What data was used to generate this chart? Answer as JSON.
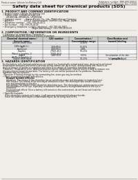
{
  "bg_color": "#f0ede8",
  "header_top_left": "Product name: Lithium Ion Battery Cell",
  "header_top_right": "Substance number: SBN-689-00010\nEstablishment / Revision: Dec.7.2010",
  "main_title": "Safety data sheet for chemical products (SDS)",
  "section1_title": "1. PRODUCT AND COMPANY IDENTIFICATION",
  "section1_lines": [
    "  • Product name: Lithium Ion Battery Cell",
    "  • Product code: Cylindrical-type cell",
    "       UR18650A, UR18650L, UR18650A",
    "  • Company name:      Sanyo Electric Co., Ltd., Mobile Energy Company",
    "  • Address:               2023-1  Kamimunakan, Sumoto-City, Hyogo, Japan",
    "  • Telephone number:   +81-799-26-4111",
    "  • Fax number:   +81-799-26-4129",
    "  • Emergency telephone number (daytime): +81-799-26-3962",
    "                                            (Night and holiday): +81-799-26-4129"
  ],
  "section2_title": "2. COMPOSITION / INFORMATION ON INGREDIENTS",
  "section2_intro": "  • Substance or preparation: Preparation",
  "section2_sub": "  Information about the chemical nature of product:",
  "table_headers": [
    "Chemical chemical name /\nGeneric name",
    "CAS number",
    "Concentration /\nConcentration range",
    "Classification and\nhazard labeling"
  ],
  "table_rows": [
    [
      "Lithium cobalt oxide\n(LiMn-Co-Ni-O₂)",
      "-",
      "30-60%",
      "-"
    ],
    [
      "Iron",
      "7439-89-6",
      "15-25%",
      "-"
    ],
    [
      "Aluminum",
      "7429-90-5",
      "2-8%",
      "-"
    ],
    [
      "Graphite\n(Metal in graphite-1)\n(All-Mo-in-graphite-1)",
      "77643-40-5\n77343-44-0",
      "10-20%",
      "-"
    ],
    [
      "Copper",
      "7440-50-8",
      "5-15%",
      "Sensitization of the skin\ngroup No.2"
    ],
    [
      "Organic electrolyte",
      "-",
      "10-20%",
      "Inflammable liquid"
    ]
  ],
  "section3_title": "3. HAZARDS IDENTIFICATION",
  "section3_lines": [
    "  For the battery cell, chemical substances are stored in a hermetically sealed metal case, designed to withstand",
    "  temperature variations and electro-corrosion during normal use. As a result, during normal use, there is no",
    "  physical danger of ignition or aspiration and there is no danger of hazardous materials leakage.",
    "    However, if exposed to a fire, added mechanical shocks, decomposes, emitted and/or strong microwave use,",
    "  the gas release cannot be operated. The battery cell core will be produced at the problems, hazardous",
    "  materials may be released.",
    "    Moreover, if heated strongly by the surrounding fire, some gas may be emitted."
  ],
  "section3_bullet1": "  • Most important hazard and effects:",
  "section3_human": "      Human health effects:",
  "section3_human_lines": [
    "        Inhalation: The release of the electrolyte has an anesthesia action and stimulates in respiratory tract.",
    "        Skin contact: The release of the electrolyte stimulates a skin. The electrolyte skin contact causes a",
    "        sore and stimulation on the skin.",
    "        Eye contact: The release of the electrolyte stimulates eyes. The electrolyte eye contact causes a sore",
    "        and stimulation on the eye. Especially, a substance that causes a strong inflammation of the eye is",
    "        combined.",
    "        Environmental effects: Since a battery cell remains in the environment, do not throw out it into the",
    "        environment."
  ],
  "section3_specific": "  • Specific hazards:",
  "section3_specific_lines": [
    "      If the electrolyte contacts with water, it will generate detrimental hydrogen fluoride.",
    "      Since the heated electrolyte is inflammable liquid, do not bring close to fire."
  ]
}
